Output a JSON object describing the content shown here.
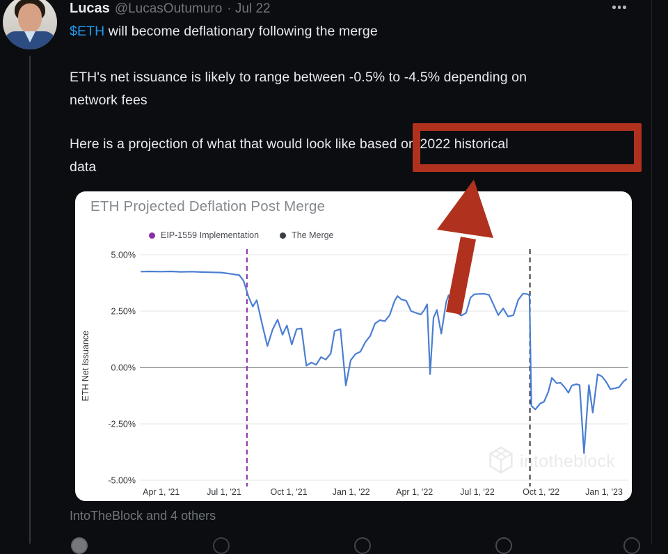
{
  "tweet": {
    "author": "Lucas",
    "handle": "@LucasOutumuro",
    "date_display": "· Jul 22",
    "cashtag": "$ETH",
    "line1_rest": " will become deflationary following the merge",
    "para2_lines": [
      "ETH's net issuance is likely to range between -0.5% to -4.5% depending on",
      "network fees"
    ],
    "para3_lines": [
      "Here is a projection of what that would look like based on 2022 historical",
      "data"
    ],
    "tagged_users": "IntoTheBlock and 4 others",
    "text_color": "#e8eaed",
    "muted_color": "#70767c",
    "link_color": "#1d9bf0"
  },
  "annotation": {
    "highlight_text": "based on 2022 historical",
    "color": "#b1311f",
    "shape": "box-and-up-arrow"
  },
  "icons": {
    "more": "ellipsis-horizontal",
    "action_row": [
      "reply-icon",
      "retweet-icon",
      "like-icon",
      "views-icon",
      "share-icon"
    ],
    "watermark_logo": "intotheblock-hexagon"
  },
  "chart": {
    "card_bg": "#ffffff",
    "title_color": "#85898d",
    "watermark": "intotheblock"
  },
  "chart_data": {
    "type": "line",
    "title": "ETH Projected Deflation Post Merge",
    "ylabel": "ETH Net Issuance",
    "ylim": [
      -5,
      5
    ],
    "grid": true,
    "legend_position": "top",
    "y_ticks": [
      {
        "value": 5.0,
        "label": "5.00%"
      },
      {
        "value": 2.5,
        "label": "2.50%"
      },
      {
        "value": 0.0,
        "label": "0.00%"
      },
      {
        "value": -2.5,
        "label": "-2.50%"
      },
      {
        "value": -5.0,
        "label": "-5.00%"
      }
    ],
    "x_ticks": [
      {
        "pos": 0.041,
        "label": "Apr 1, '21"
      },
      {
        "pos": 0.17,
        "label": "Jul 1, '21"
      },
      {
        "pos": 0.303,
        "label": "Oct 1, '21"
      },
      {
        "pos": 0.431,
        "label": "Jan 1, '22"
      },
      {
        "pos": 0.561,
        "label": "Apr 1, '22"
      },
      {
        "pos": 0.69,
        "label": "Jul 1, '22"
      },
      {
        "pos": 0.821,
        "label": "Oct 1, '22"
      },
      {
        "pos": 0.95,
        "label": "Jan 1, '23"
      }
    ],
    "legend": [
      {
        "label": "EIP-1559 Implementation",
        "color": "#8b2fa8"
      },
      {
        "label": "The Merge",
        "color": "#3a3f46"
      }
    ],
    "vlines": [
      {
        "name": "EIP-1559 Implementation",
        "pos": 0.217,
        "color": "#8b2fa8"
      },
      {
        "name": "The Merge",
        "pos": 0.798,
        "color": "#2f3237"
      }
    ],
    "line_color": "#4b7ed2",
    "grid_color": "#e4e4e6",
    "zero_line_color": "#8c8f93",
    "axis_text_color": "#33363a",
    "series": [
      {
        "name": "ETH Net Issuance %",
        "points": [
          [
            0.0,
            4.25
          ],
          [
            0.017,
            4.26
          ],
          [
            0.039,
            4.25
          ],
          [
            0.06,
            4.26
          ],
          [
            0.081,
            4.24
          ],
          [
            0.103,
            4.25
          ],
          [
            0.124,
            4.23
          ],
          [
            0.146,
            4.22
          ],
          [
            0.164,
            4.21
          ],
          [
            0.181,
            4.16
          ],
          [
            0.193,
            4.12
          ],
          [
            0.201,
            4.1
          ],
          [
            0.21,
            3.85
          ],
          [
            0.22,
            3.15
          ],
          [
            0.229,
            2.7
          ],
          [
            0.237,
            2.98
          ],
          [
            0.249,
            1.85
          ],
          [
            0.259,
            0.95
          ],
          [
            0.27,
            1.7
          ],
          [
            0.28,
            2.12
          ],
          [
            0.29,
            1.45
          ],
          [
            0.299,
            1.86
          ],
          [
            0.309,
            1.02
          ],
          [
            0.319,
            1.7
          ],
          [
            0.329,
            1.73
          ],
          [
            0.339,
            0.08
          ],
          [
            0.349,
            0.22
          ],
          [
            0.359,
            0.12
          ],
          [
            0.369,
            0.46
          ],
          [
            0.379,
            0.35
          ],
          [
            0.389,
            0.62
          ],
          [
            0.397,
            1.62
          ],
          [
            0.409,
            1.7
          ],
          [
            0.42,
            -0.8
          ],
          [
            0.43,
            0.32
          ],
          [
            0.44,
            0.6
          ],
          [
            0.45,
            0.7
          ],
          [
            0.46,
            1.12
          ],
          [
            0.47,
            1.4
          ],
          [
            0.48,
            1.95
          ],
          [
            0.49,
            2.1
          ],
          [
            0.5,
            2.05
          ],
          [
            0.51,
            2.32
          ],
          [
            0.52,
            2.95
          ],
          [
            0.526,
            3.17
          ],
          [
            0.534,
            3.02
          ],
          [
            0.544,
            2.96
          ],
          [
            0.554,
            2.5
          ],
          [
            0.564,
            2.42
          ],
          [
            0.574,
            2.35
          ],
          [
            0.581,
            2.55
          ],
          [
            0.587,
            2.8
          ],
          [
            0.593,
            -0.3
          ],
          [
            0.6,
            2.2
          ],
          [
            0.607,
            2.55
          ],
          [
            0.616,
            1.5
          ],
          [
            0.626,
            2.9
          ],
          [
            0.631,
            3.2
          ],
          [
            0.639,
            2.48
          ],
          [
            0.649,
            2.42
          ],
          [
            0.657,
            2.3
          ],
          [
            0.667,
            2.42
          ],
          [
            0.676,
            3.1
          ],
          [
            0.684,
            3.25
          ],
          [
            0.703,
            3.27
          ],
          [
            0.714,
            3.22
          ],
          [
            0.724,
            2.75
          ],
          [
            0.733,
            2.32
          ],
          [
            0.743,
            2.62
          ],
          [
            0.753,
            2.26
          ],
          [
            0.764,
            2.32
          ],
          [
            0.774,
            3.0
          ],
          [
            0.784,
            3.28
          ],
          [
            0.793,
            3.25
          ],
          [
            0.797,
            3.2
          ],
          [
            0.801,
            -1.7
          ],
          [
            0.809,
            -1.86
          ],
          [
            0.819,
            -1.6
          ],
          [
            0.827,
            -1.52
          ],
          [
            0.836,
            -1.06
          ],
          [
            0.843,
            -0.46
          ],
          [
            0.853,
            -0.7
          ],
          [
            0.861,
            -0.68
          ],
          [
            0.87,
            -0.9
          ],
          [
            0.877,
            -1.12
          ],
          [
            0.884,
            -0.8
          ],
          [
            0.893,
            -0.74
          ],
          [
            0.9,
            -0.78
          ],
          [
            0.909,
            -3.8
          ],
          [
            0.919,
            -0.78
          ],
          [
            0.927,
            -2.0
          ],
          [
            0.937,
            -0.3
          ],
          [
            0.946,
            -0.4
          ],
          [
            0.954,
            -0.62
          ],
          [
            0.963,
            -0.96
          ],
          [
            0.973,
            -0.92
          ],
          [
            0.981,
            -0.88
          ],
          [
            0.99,
            -0.62
          ],
          [
            0.996,
            -0.52
          ]
        ]
      }
    ]
  }
}
